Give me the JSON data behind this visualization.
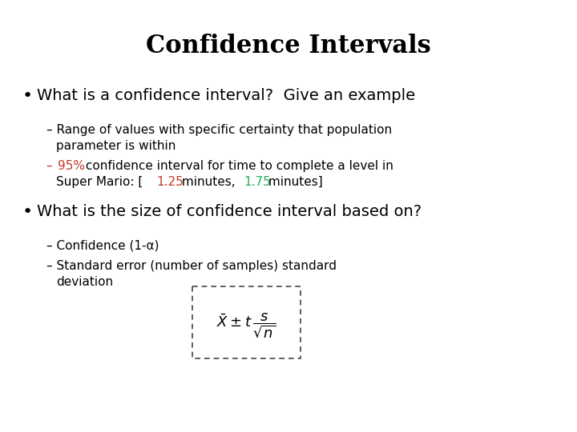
{
  "title": "Confidence Intervals",
  "title_fontsize": 22,
  "title_font": "DejaVu Serif",
  "background_color": "#ffffff",
  "text_color": "#000000",
  "red_color": "#c0392b",
  "green_color": "#27ae60",
  "bullet1": "What is a confidence interval?  Give an example",
  "bullet1_fs": 14,
  "sub_fs": 11,
  "bullet2": "What is the size of confidence interval based on?",
  "bullet2_fs": 14,
  "sub2a": "– Confidence (1-α)",
  "sub2b_line1": "– Standard error (number of samples) standard",
  "sub2b_line2": "   deviation"
}
